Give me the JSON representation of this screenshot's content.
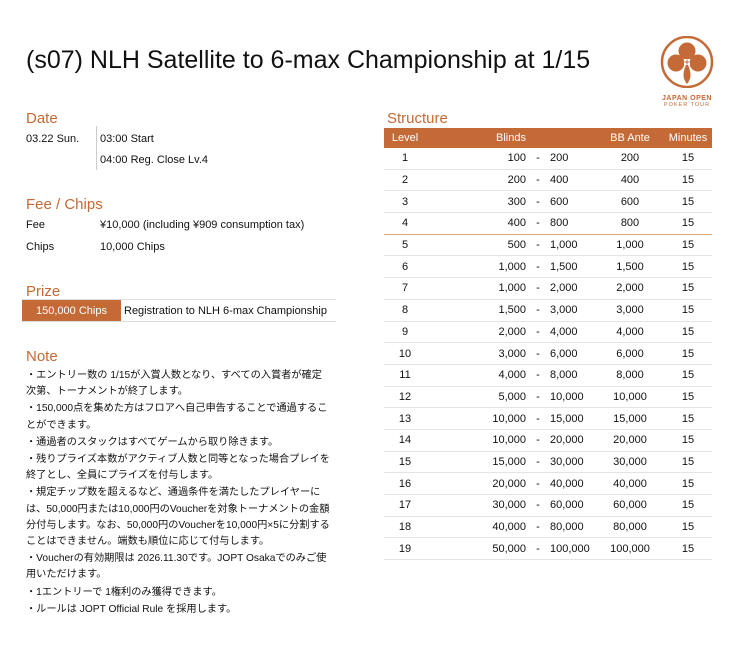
{
  "title": "(s07) NLH Satellite to 6-max Championship at 1/15",
  "logo": {
    "line1": "JAPAN OPEN",
    "line2": "POKER TOUR"
  },
  "colors": {
    "accent": "#c46a36"
  },
  "date": {
    "heading": "Date",
    "day": "03.22 Sun.",
    "start": "03:00 Start",
    "reg_close": "04:00 Reg. Close Lv.4"
  },
  "fee": {
    "heading": "Fee / Chips",
    "fee_label": "Fee",
    "fee_value": "¥10,000 (including ¥909 consumption tax)",
    "chips_label": "Chips",
    "chips_value": "10,000 Chips"
  },
  "prize": {
    "heading": "Prize",
    "chips": "150,000 Chips",
    "reward": "Registration to NLH 6-max Championship"
  },
  "note": {
    "heading": "Note",
    "lines": [
      "・エントリー数の 1/15が入賞人数となり、すべての入賞者が確定次第、トーナメントが終了します。",
      "・150,000点を集めた方はフロアへ自己申告することで通過することができます。",
      "・通過者のスタックはすべてゲームから取り除きます。",
      "・残りプライズ本数がアクティブ人数と同等となった場合プレイを終了とし、全員にプライズを付与します。",
      "・規定チップ数を超えるなど、通過条件を満たしたプレイヤーには、50,000円または10,000円のVoucherを対象トーナメントの金額分付与します。なお、50,000円のVoucherを10,000円×5に分割することはできません。端数も順位に応じて付与します。",
      "・Voucherの有効期限は 2026.11.30です。JOPT Osakaでのみご使用いただけます。",
      "・1エントリーで 1権利のみ獲得できます。",
      "・ルールは JOPT Official Rule を採用します。"
    ]
  },
  "structure": {
    "heading": "Structure",
    "columns": [
      "Level",
      "Blinds",
      "BB Ante",
      "Minutes"
    ],
    "dash": "-",
    "rows": [
      [
        "1",
        "100",
        "200",
        "200",
        "15"
      ],
      [
        "2",
        "200",
        "400",
        "400",
        "15"
      ],
      [
        "3",
        "300",
        "600",
        "600",
        "15"
      ],
      [
        "4",
        "400",
        "800",
        "800",
        "15"
      ],
      [
        "5",
        "500",
        "1,000",
        "1,000",
        "15"
      ],
      [
        "6",
        "1,000",
        "1,500",
        "1,500",
        "15"
      ],
      [
        "7",
        "1,000",
        "2,000",
        "2,000",
        "15"
      ],
      [
        "8",
        "1,500",
        "3,000",
        "3,000",
        "15"
      ],
      [
        "9",
        "2,000",
        "4,000",
        "4,000",
        "15"
      ],
      [
        "10",
        "3,000",
        "6,000",
        "6,000",
        "15"
      ],
      [
        "11",
        "4,000",
        "8,000",
        "8,000",
        "15"
      ],
      [
        "12",
        "5,000",
        "10,000",
        "10,000",
        "15"
      ],
      [
        "13",
        "10,000",
        "15,000",
        "15,000",
        "15"
      ],
      [
        "14",
        "10,000",
        "20,000",
        "20,000",
        "15"
      ],
      [
        "15",
        "15,000",
        "30,000",
        "30,000",
        "15"
      ],
      [
        "16",
        "20,000",
        "40,000",
        "40,000",
        "15"
      ],
      [
        "17",
        "30,000",
        "60,000",
        "60,000",
        "15"
      ],
      [
        "18",
        "40,000",
        "80,000",
        "80,000",
        "15"
      ],
      [
        "19",
        "50,000",
        "100,000",
        "100,000",
        "15"
      ]
    ]
  }
}
